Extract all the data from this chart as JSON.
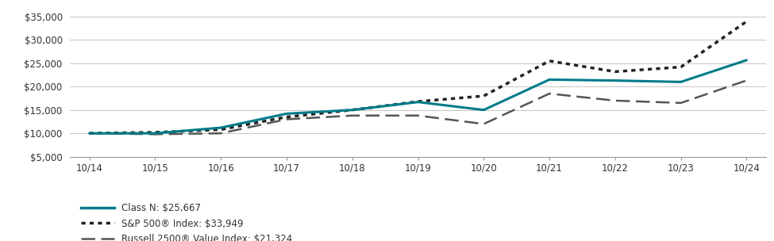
{
  "x_labels": [
    "10/14",
    "10/15",
    "10/16",
    "10/17",
    "10/18",
    "10/19",
    "10/20",
    "10/21",
    "10/22",
    "10/23",
    "10/24"
  ],
  "x_values": [
    0,
    1,
    2,
    3,
    4,
    5,
    6,
    7,
    8,
    9,
    10
  ],
  "class_n": [
    10000,
    10000,
    11200,
    14200,
    15000,
    16700,
    15000,
    21500,
    21300,
    21000,
    25667
  ],
  "sp500": [
    10000,
    10200,
    10800,
    13500,
    15000,
    16800,
    18000,
    25500,
    23200,
    24200,
    33949
  ],
  "russell": [
    10000,
    9800,
    10000,
    13000,
    13800,
    13800,
    12000,
    18500,
    17000,
    16500,
    21324
  ],
  "class_n_color": "#007b8a",
  "sp500_color": "#222222",
  "russell_color": "#555555",
  "ylim": [
    5000,
    37000
  ],
  "yticks": [
    5000,
    10000,
    15000,
    20000,
    25000,
    30000,
    35000
  ],
  "legend_labels": [
    "Class N: $25,667",
    "S&P 500® Index: $33,949",
    "Russell 2500® Value Index: $21,324"
  ],
  "bg_color": "#ffffff",
  "grid_color": "#bbbbbb",
  "lw_main": 2.2,
  "lw_dot": 2.5,
  "lw_dash": 1.8
}
